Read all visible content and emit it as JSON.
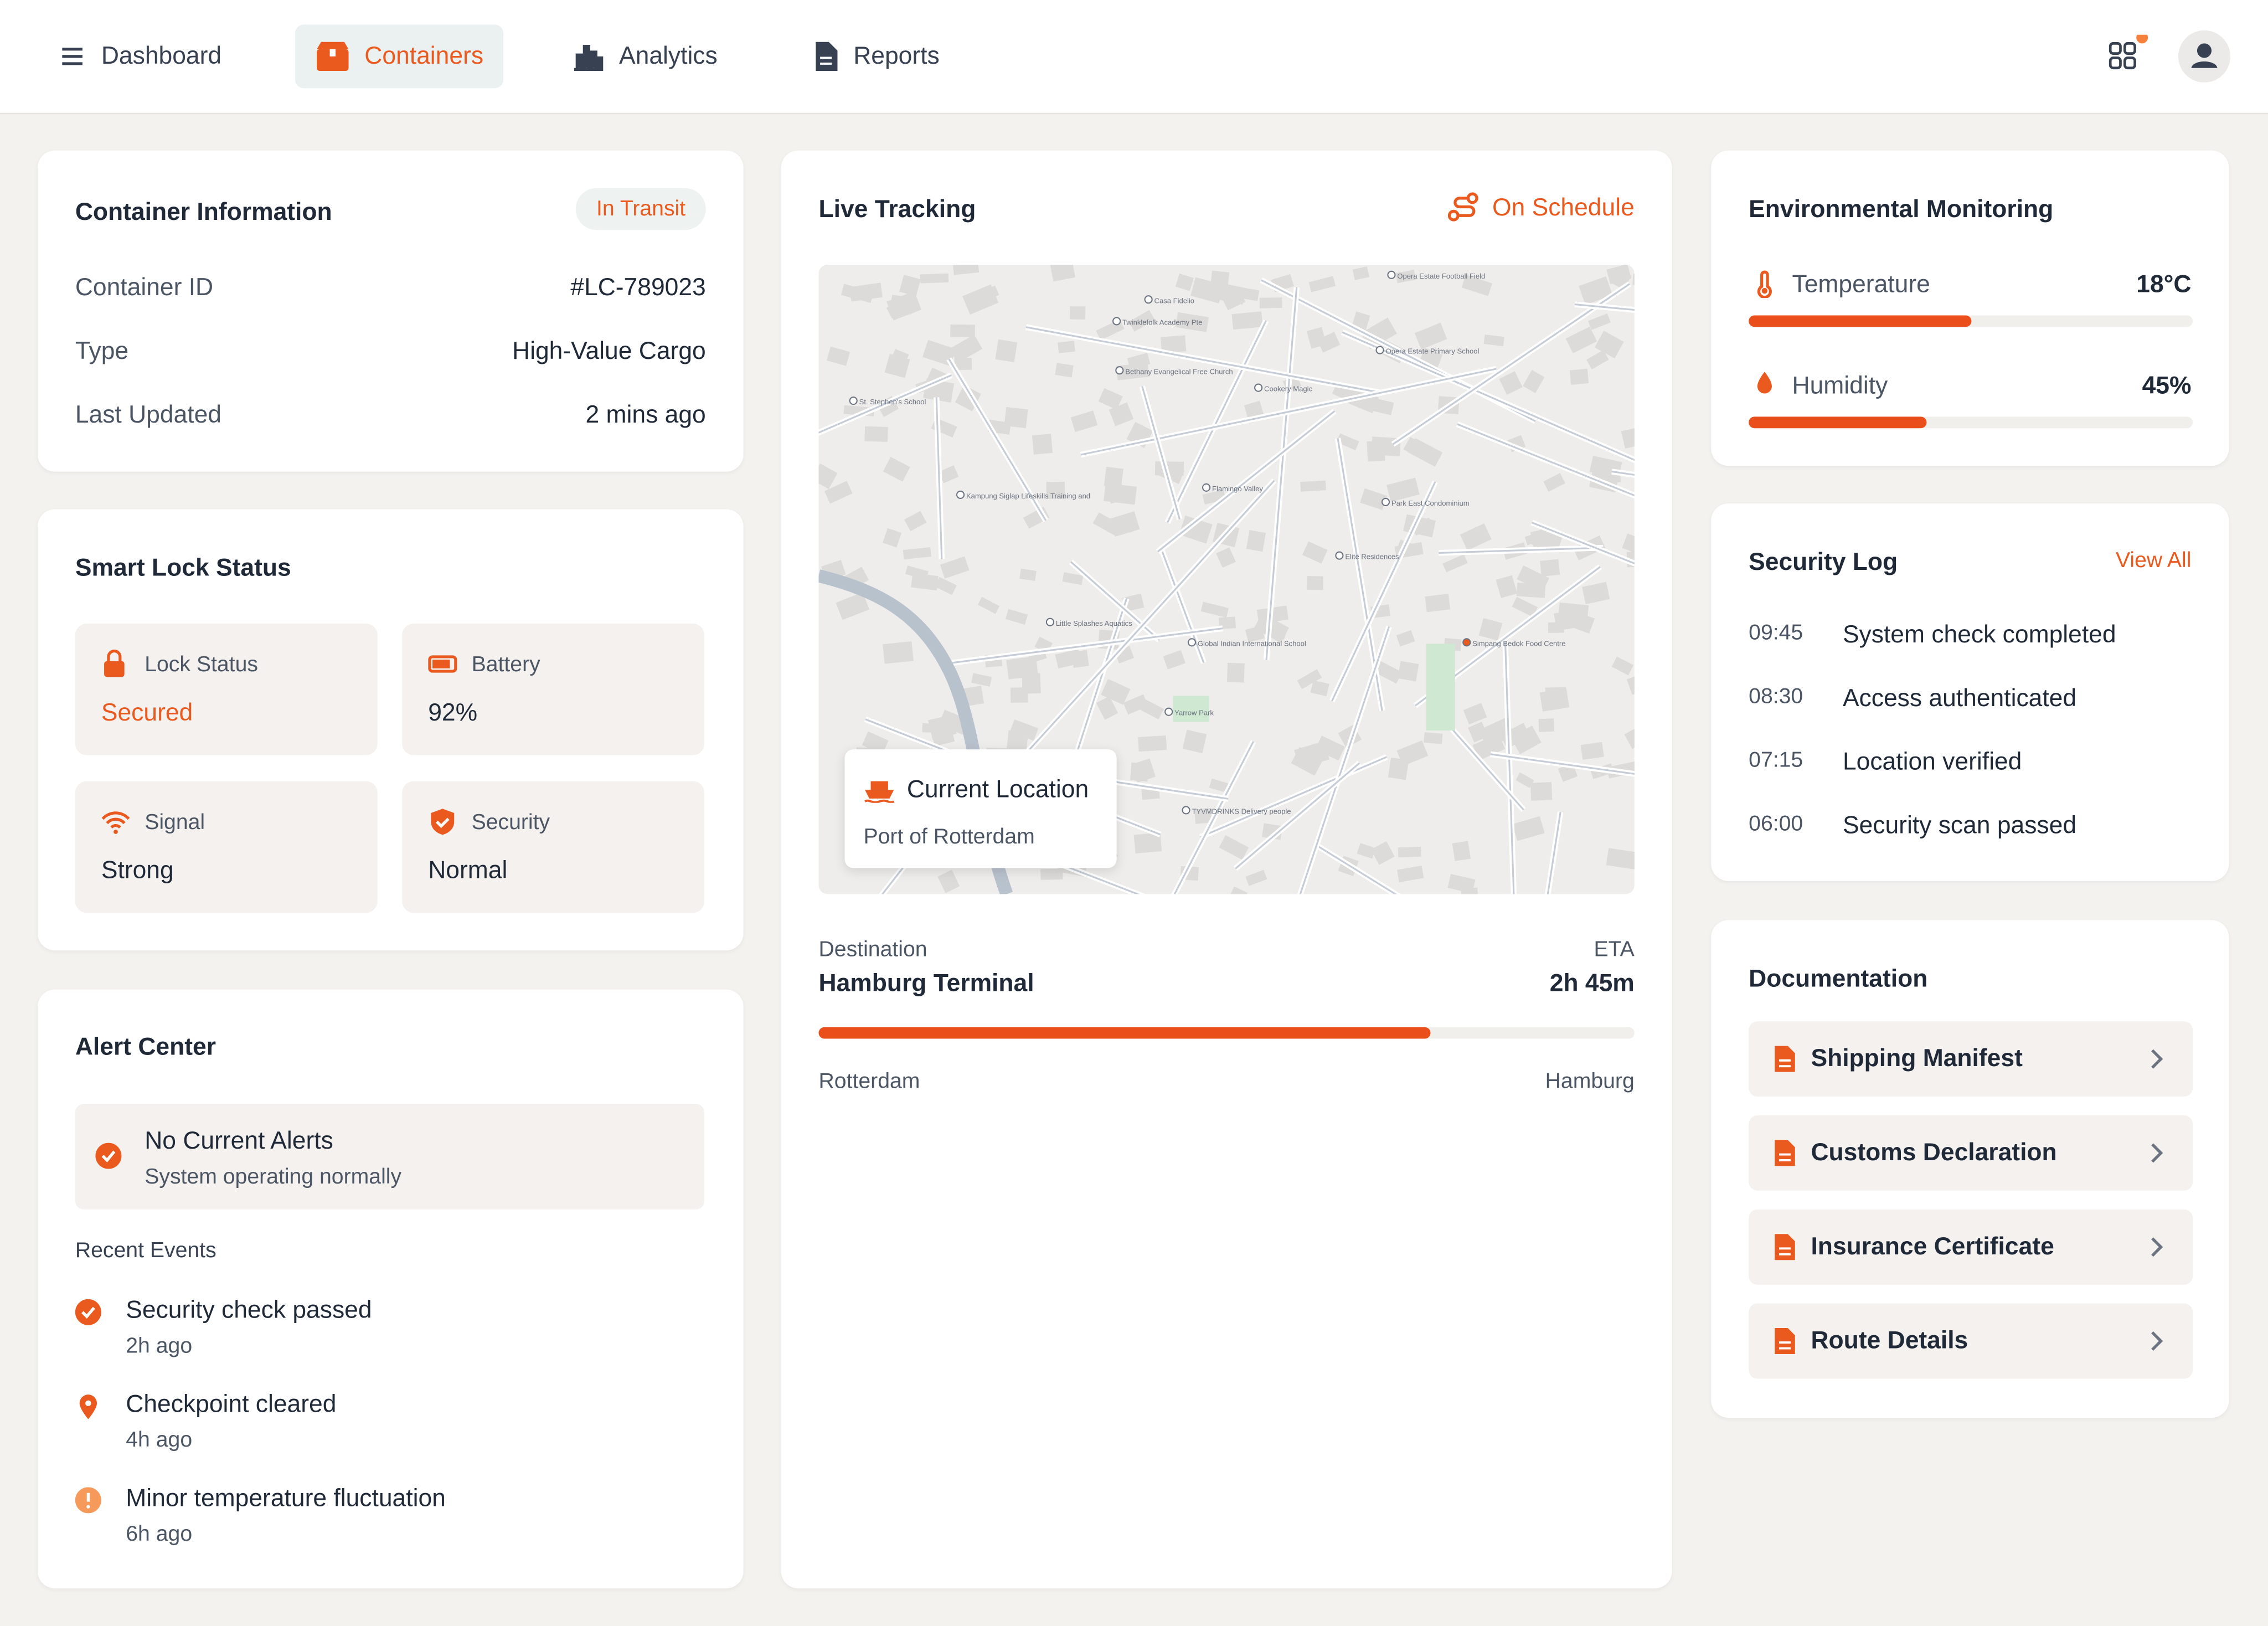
{
  "nav": {
    "items": [
      "Dashboard",
      "Containers",
      "Analytics",
      "Reports"
    ],
    "active": 1
  },
  "container_info": {
    "title": "Container Information",
    "status": "In Transit",
    "rows": [
      [
        "Container ID",
        "#LC-789023"
      ],
      [
        "Type",
        "High-Value Cargo"
      ],
      [
        "Last Updated",
        "2 mins ago"
      ]
    ]
  },
  "smart_lock": {
    "title": "Smart Lock Status",
    "tiles": [
      {
        "label": "Lock Status",
        "value": "Secured"
      },
      {
        "label": "Battery",
        "value": "92%"
      },
      {
        "label": "Signal",
        "value": "Strong"
      },
      {
        "label": "Security",
        "value": "Normal"
      }
    ]
  },
  "alerts": {
    "title": "Alert Center",
    "banner": {
      "title": "No Current Alerts",
      "subtitle": "System operating normally"
    },
    "recent_title": "Recent Events",
    "events": [
      {
        "title": "Security check passed",
        "time": "2h ago"
      },
      {
        "title": "Checkpoint cleared",
        "time": "4h ago"
      },
      {
        "title": "Minor temperature fluctuation",
        "time": "6h ago"
      }
    ]
  },
  "tracking": {
    "title": "Live Tracking",
    "status": "On Schedule",
    "map": {
      "labels": [
        "St. Stephen's School",
        "Twinklefolk Academy Pte",
        "Casa Fidelio",
        "Opera Estate Football Field",
        "Opera Estate Primary School",
        "Cookery Magic",
        "Bethany Evangelical Free Church",
        "Kampung Siglap Lifeskills Training and",
        "Flamingo Valley",
        "Park East Condominium",
        "Elite Residences",
        "Little Splashes Aquatics",
        "Global Indian International School",
        "Yarrow Park",
        "TYVMDRINKS Delivery people",
        "Simpang Bedok Food Centre"
      ],
      "location_title": "Current Location",
      "location_name": "Port of Rotterdam"
    },
    "destination_label": "Destination",
    "destination": "Hamburg Terminal",
    "eta_label": "ETA",
    "eta": "2h 45m",
    "progress": 75,
    "origin": "Rotterdam",
    "end": "Hamburg"
  },
  "environment": {
    "title": "Environmental Monitoring",
    "metrics": [
      {
        "name": "Temperature",
        "value": "18°C",
        "fill": 50
      },
      {
        "name": "Humidity",
        "value": "45%",
        "fill": 40
      }
    ]
  },
  "security_log": {
    "title": "Security Log",
    "link": "View All",
    "entries": [
      {
        "time": "09:45",
        "text": "System check completed"
      },
      {
        "time": "08:30",
        "text": "Access authenticated"
      },
      {
        "time": "07:15",
        "text": "Location verified"
      },
      {
        "time": "06:00",
        "text": "Security scan passed"
      }
    ]
  },
  "documentation": {
    "title": "Documentation",
    "items": [
      "Shipping Manifest",
      "Customs Declaration",
      "Insurance Certificate",
      "Route Details"
    ]
  }
}
